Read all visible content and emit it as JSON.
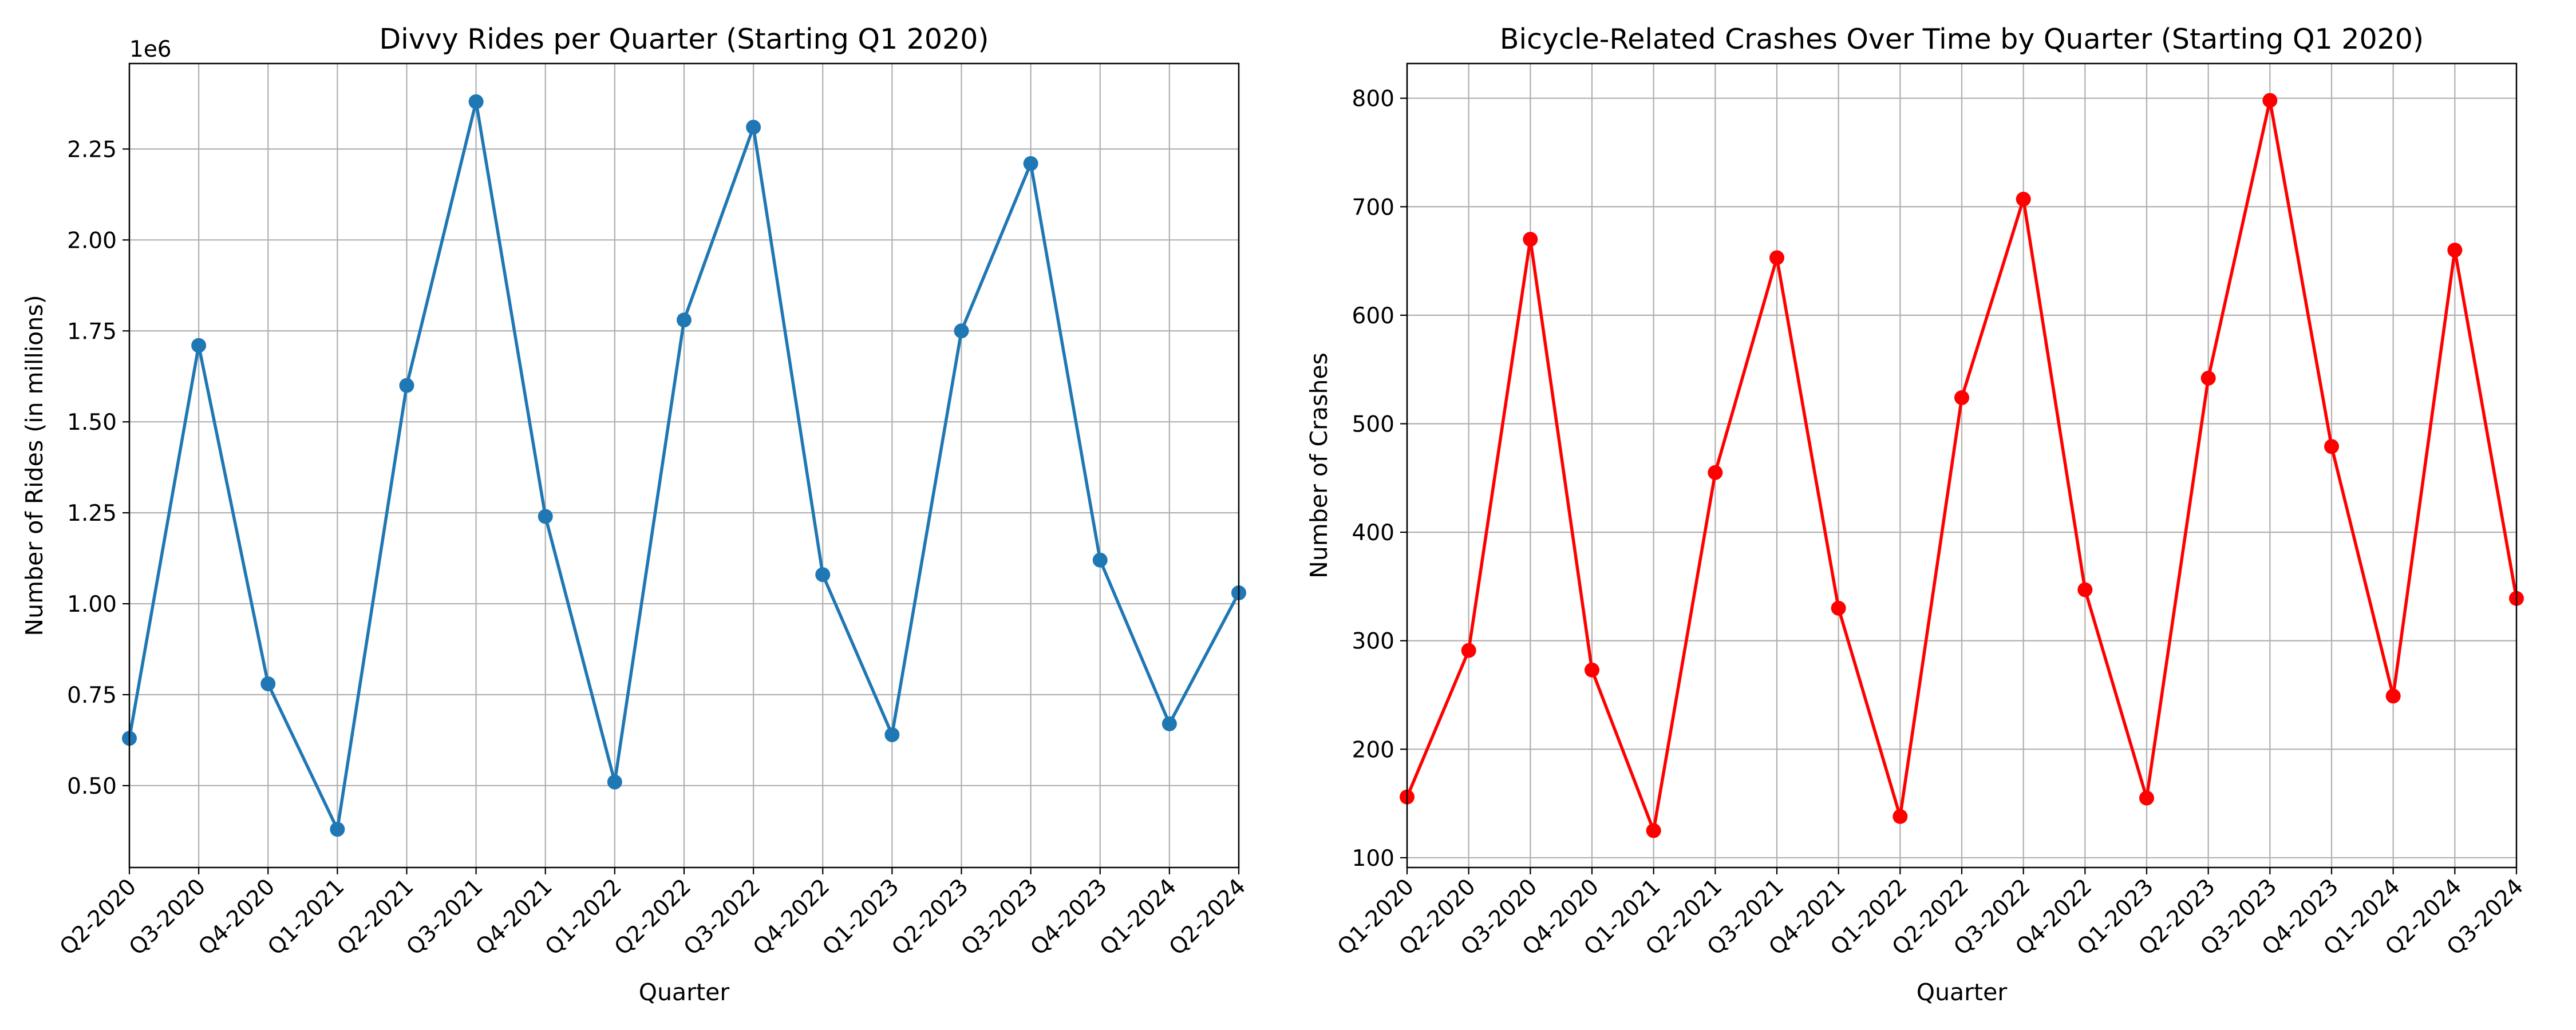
{
  "chart_data": [
    {
      "type": "line",
      "title": "Divvy Rides per Quarter (Starting Q1 2020)",
      "xlabel": "Quarter",
      "ylabel": "Number of Rides (in millions)",
      "y_offset_label": "1e6",
      "categories": [
        "Q2-2020",
        "Q3-2020",
        "Q4-2020",
        "Q1-2021",
        "Q2-2021",
        "Q3-2021",
        "Q4-2021",
        "Q1-2022",
        "Q2-2022",
        "Q3-2022",
        "Q4-2022",
        "Q1-2023",
        "Q2-2023",
        "Q3-2023",
        "Q4-2023",
        "Q1-2024",
        "Q2-2024"
      ],
      "x": [
        0,
        1,
        2,
        3,
        4,
        5,
        6,
        7,
        8,
        9,
        10,
        11,
        12,
        13,
        14,
        15,
        16
      ],
      "xlim": [
        0,
        16
      ],
      "ylim": [
        0.275,
        2.485
      ],
      "yticks": [
        0.5,
        0.75,
        1.0,
        1.25,
        1.5,
        1.75,
        2.0,
        2.25
      ],
      "ytick_labels": [
        "0.50",
        "0.75",
        "1.00",
        "1.25",
        "1.50",
        "1.75",
        "2.00",
        "2.25"
      ],
      "series": [
        {
          "values": [
            0.63,
            1.71,
            0.78,
            0.38,
            1.6,
            2.38,
            1.24,
            0.51,
            1.78,
            2.31,
            1.08,
            0.64,
            1.75,
            2.21,
            1.12,
            0.67,
            1.03
          ],
          "color": "#1f77b4",
          "marker": "circle"
        }
      ],
      "grid": true,
      "legend": "none"
    },
    {
      "type": "line",
      "title": "Bicycle-Related Crashes Over Time by Quarter (Starting Q1 2020)",
      "xlabel": "Quarter",
      "ylabel": "Number of Crashes",
      "categories": [
        "Q1-2020",
        "Q2-2020",
        "Q3-2020",
        "Q4-2020",
        "Q1-2021",
        "Q2-2021",
        "Q3-2021",
        "Q4-2021",
        "Q1-2022",
        "Q2-2022",
        "Q3-2022",
        "Q4-2022",
        "Q1-2023",
        "Q2-2023",
        "Q3-2023",
        "Q4-2023",
        "Q1-2024",
        "Q2-2024",
        "Q3-2024"
      ],
      "x": [
        0,
        1,
        2,
        3,
        4,
        5,
        6,
        7,
        8,
        9,
        10,
        11,
        12,
        13,
        14,
        15,
        16,
        17,
        18
      ],
      "xlim": [
        0,
        18
      ],
      "ylim": [
        91,
        832
      ],
      "yticks": [
        100,
        200,
        300,
        400,
        500,
        600,
        700,
        800
      ],
      "ytick_labels": [
        "100",
        "200",
        "300",
        "400",
        "500",
        "600",
        "700",
        "800"
      ],
      "series": [
        {
          "values": [
            156,
            291,
            670,
            273,
            125,
            455,
            653,
            330,
            138,
            524,
            707,
            347,
            155,
            542,
            798,
            479,
            249,
            660,
            339
          ],
          "color": "#ff0000",
          "marker": "circle"
        }
      ],
      "grid": true,
      "legend": "none"
    }
  ]
}
